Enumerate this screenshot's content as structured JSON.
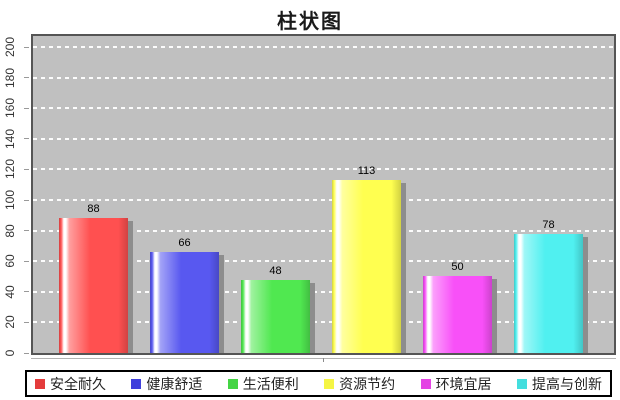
{
  "chart_data": {
    "type": "bar",
    "title": "柱状图",
    "categories": [
      "安全耐久",
      "健康舒适",
      "生活便利",
      "资源节约",
      "环境宜居",
      "提高与创新"
    ],
    "values": [
      88,
      66,
      48,
      113,
      50,
      78
    ],
    "value_labels": [
      "88",
      "66",
      "48",
      "113",
      "50",
      "78"
    ],
    "series_colors": [
      "#ff5050",
      "#5858f0",
      "#50e850",
      "#ffff50",
      "#f850f8",
      "#50f0f0"
    ],
    "legend_colors": [
      "#e43c3c",
      "#4040dc",
      "#44d544",
      "#f5f544",
      "#e444e4",
      "#44dede"
    ],
    "xlabel": "",
    "ylabel": "",
    "ylim": [
      0,
      200
    ],
    "yticks": [
      0,
      20,
      40,
      60,
      80,
      100,
      120,
      140,
      160,
      180,
      200
    ],
    "grid": true,
    "gridline_color": "#ffffff",
    "plot_background": "#c0c0c0",
    "plot_border_color": "#555555",
    "shadow_color": "#8d8d8d",
    "legend_position": "bottom"
  }
}
